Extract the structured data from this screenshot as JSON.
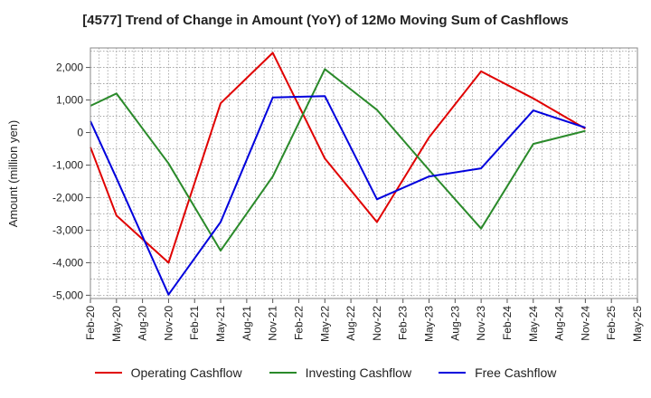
{
  "chart_data": {
    "type": "line",
    "title": "[4577]  Trend of Change in Amount (YoY) of 12Mo Moving Sum of Cashflows",
    "xlabel": "",
    "ylabel": "Amount (million yen)",
    "ylim": [
      -5100,
      2600
    ],
    "yticks": [
      2000,
      1000,
      0,
      -1000,
      -2000,
      -3000,
      -4000,
      -5000
    ],
    "ytick_labels": [
      "2,000",
      "1,000",
      "0",
      "-1,000",
      "-2,000",
      "-3,000",
      "-4,000",
      "-5,000"
    ],
    "categories": [
      "Feb-20",
      "May-20",
      "Aug-20",
      "Nov-20",
      "Feb-21",
      "May-21",
      "Aug-21",
      "Nov-21",
      "Feb-22",
      "May-22",
      "Aug-22",
      "Nov-22",
      "Feb-23",
      "May-23",
      "Aug-23",
      "Nov-23",
      "Feb-24",
      "May-24",
      "Aug-24",
      "Nov-24",
      "Feb-25",
      "May-25"
    ],
    "series": [
      {
        "name": "Operating Cashflow",
        "color": "#e00000",
        "values": [
          -450,
          -2550,
          null,
          -4000,
          null,
          900,
          null,
          2450,
          null,
          -800,
          null,
          -2750,
          null,
          -150,
          null,
          1880,
          null,
          1050,
          null,
          120,
          null,
          null
        ]
      },
      {
        "name": "Investing Cashflow",
        "color": "#2a8a2a",
        "values": [
          820,
          1200,
          null,
          -950,
          null,
          -3630,
          null,
          -1350,
          null,
          1950,
          null,
          700,
          null,
          -1150,
          null,
          -2950,
          null,
          -350,
          null,
          50,
          null,
          null
        ]
      },
      {
        "name": "Free Cashflow",
        "color": "#0000dd",
        "values": [
          350,
          -1400,
          null,
          -4980,
          null,
          -2750,
          null,
          1080,
          null,
          1120,
          null,
          -2050,
          null,
          -1350,
          null,
          -1100,
          null,
          680,
          null,
          150,
          null,
          null
        ]
      }
    ],
    "legend": [
      "Operating Cashflow",
      "Investing Cashflow",
      "Free Cashflow"
    ],
    "legend_position": "bottom"
  }
}
